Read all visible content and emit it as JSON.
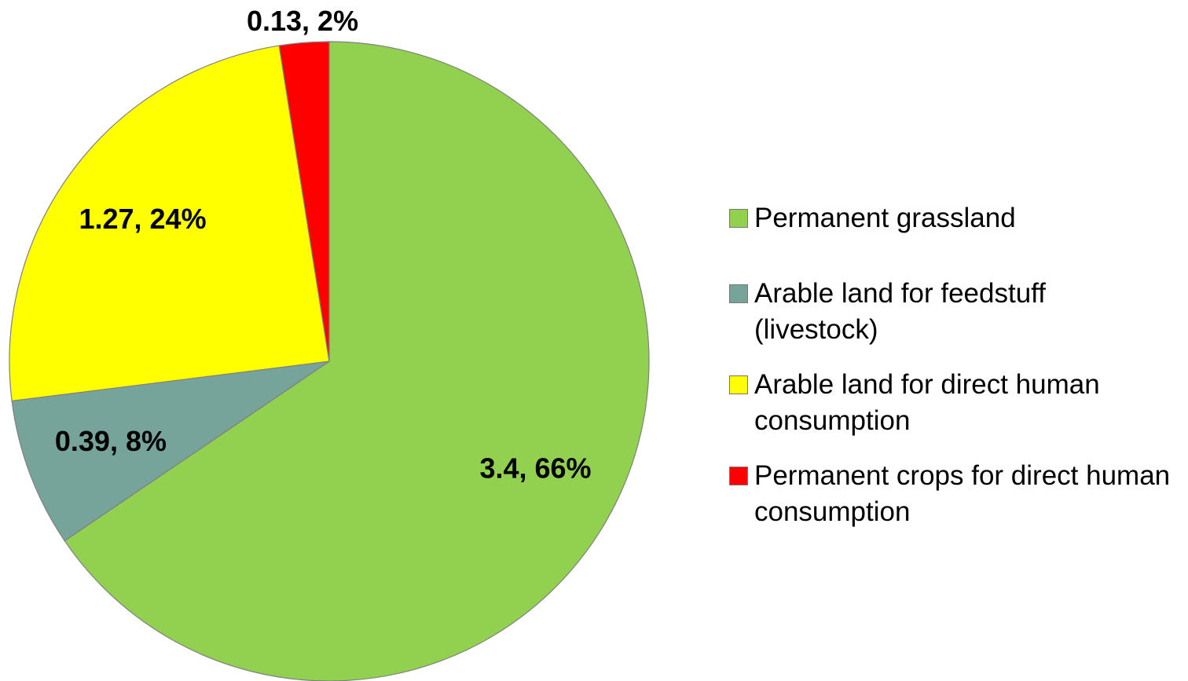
{
  "chart_data": {
    "type": "pie",
    "categories": [
      "Permanent grassland",
      "Arable land for feedstuff (livestock)",
      "Arable land for direct human consumption",
      "Permanent crops for direct human consumption"
    ],
    "values": [
      3.4,
      0.39,
      1.27,
      0.13
    ],
    "value_labels": [
      "3.4, 66%",
      "0.39, 8%",
      "1.27, 24%",
      "0.13, 2%"
    ],
    "colors": [
      "#92d050",
      "#76a39a",
      "#ffff00",
      "#ff0000"
    ],
    "legend": "right"
  }
}
